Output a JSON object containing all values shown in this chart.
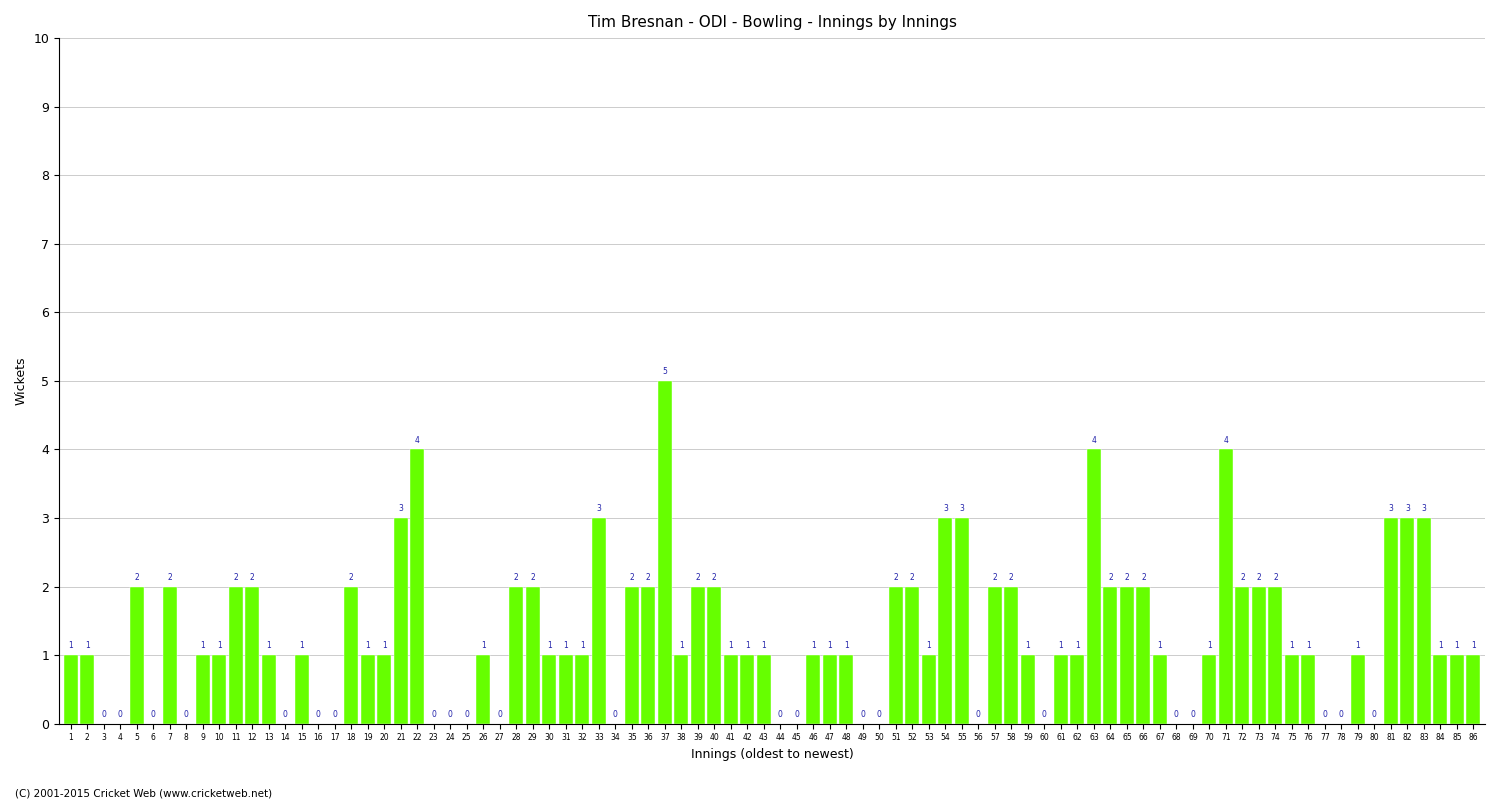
{
  "title": "Tim Bresnan - ODI - Bowling - Innings by Innings",
  "xlabel": "Innings (oldest to newest)",
  "ylabel": "Wickets",
  "ylim": [
    0,
    10
  ],
  "yticks": [
    0,
    1,
    2,
    3,
    4,
    5,
    6,
    7,
    8,
    9,
    10
  ],
  "bar_color": "#66FF00",
  "label_color": "#2222AA",
  "background_color": "#FFFFFF",
  "grid_color": "#CCCCCC",
  "footer": "(C) 2001-2015 Cricket Web (www.cricketweb.net)",
  "innings": [
    1,
    2,
    3,
    4,
    5,
    6,
    7,
    8,
    9,
    10,
    11,
    12,
    13,
    14,
    15,
    16,
    17,
    18,
    19,
    20,
    21,
    22,
    23,
    24,
    25,
    26,
    27,
    28,
    29,
    30,
    31,
    32,
    33,
    34,
    35,
    36,
    37,
    38,
    39,
    40,
    41,
    42,
    43,
    44,
    45,
    46,
    47,
    48,
    49,
    50,
    51,
    52,
    53,
    54,
    55,
    56,
    57,
    58,
    59,
    60,
    61,
    62,
    63,
    64,
    65,
    66,
    67,
    68,
    69,
    70,
    71,
    72,
    73,
    74,
    75,
    76,
    77,
    78,
    79,
    80,
    81,
    82,
    83,
    84,
    85,
    86
  ],
  "wickets": [
    1,
    1,
    0,
    0,
    2,
    0,
    2,
    0,
    1,
    1,
    2,
    2,
    1,
    0,
    1,
    0,
    0,
    2,
    1,
    1,
    3,
    4,
    0,
    0,
    0,
    1,
    0,
    2,
    2,
    1,
    1,
    1,
    3,
    0,
    2,
    2,
    5,
    1,
    2,
    2,
    1,
    1,
    1,
    0,
    0,
    1,
    1,
    1,
    0,
    0,
    2,
    2,
    1,
    3,
    3,
    0,
    2,
    2,
    1,
    0,
    1,
    1,
    4,
    2,
    2,
    2,
    1,
    0,
    0,
    1,
    4,
    2,
    2,
    2,
    1,
    1,
    0,
    0,
    1,
    0,
    3,
    3,
    3,
    1,
    1,
    1
  ]
}
